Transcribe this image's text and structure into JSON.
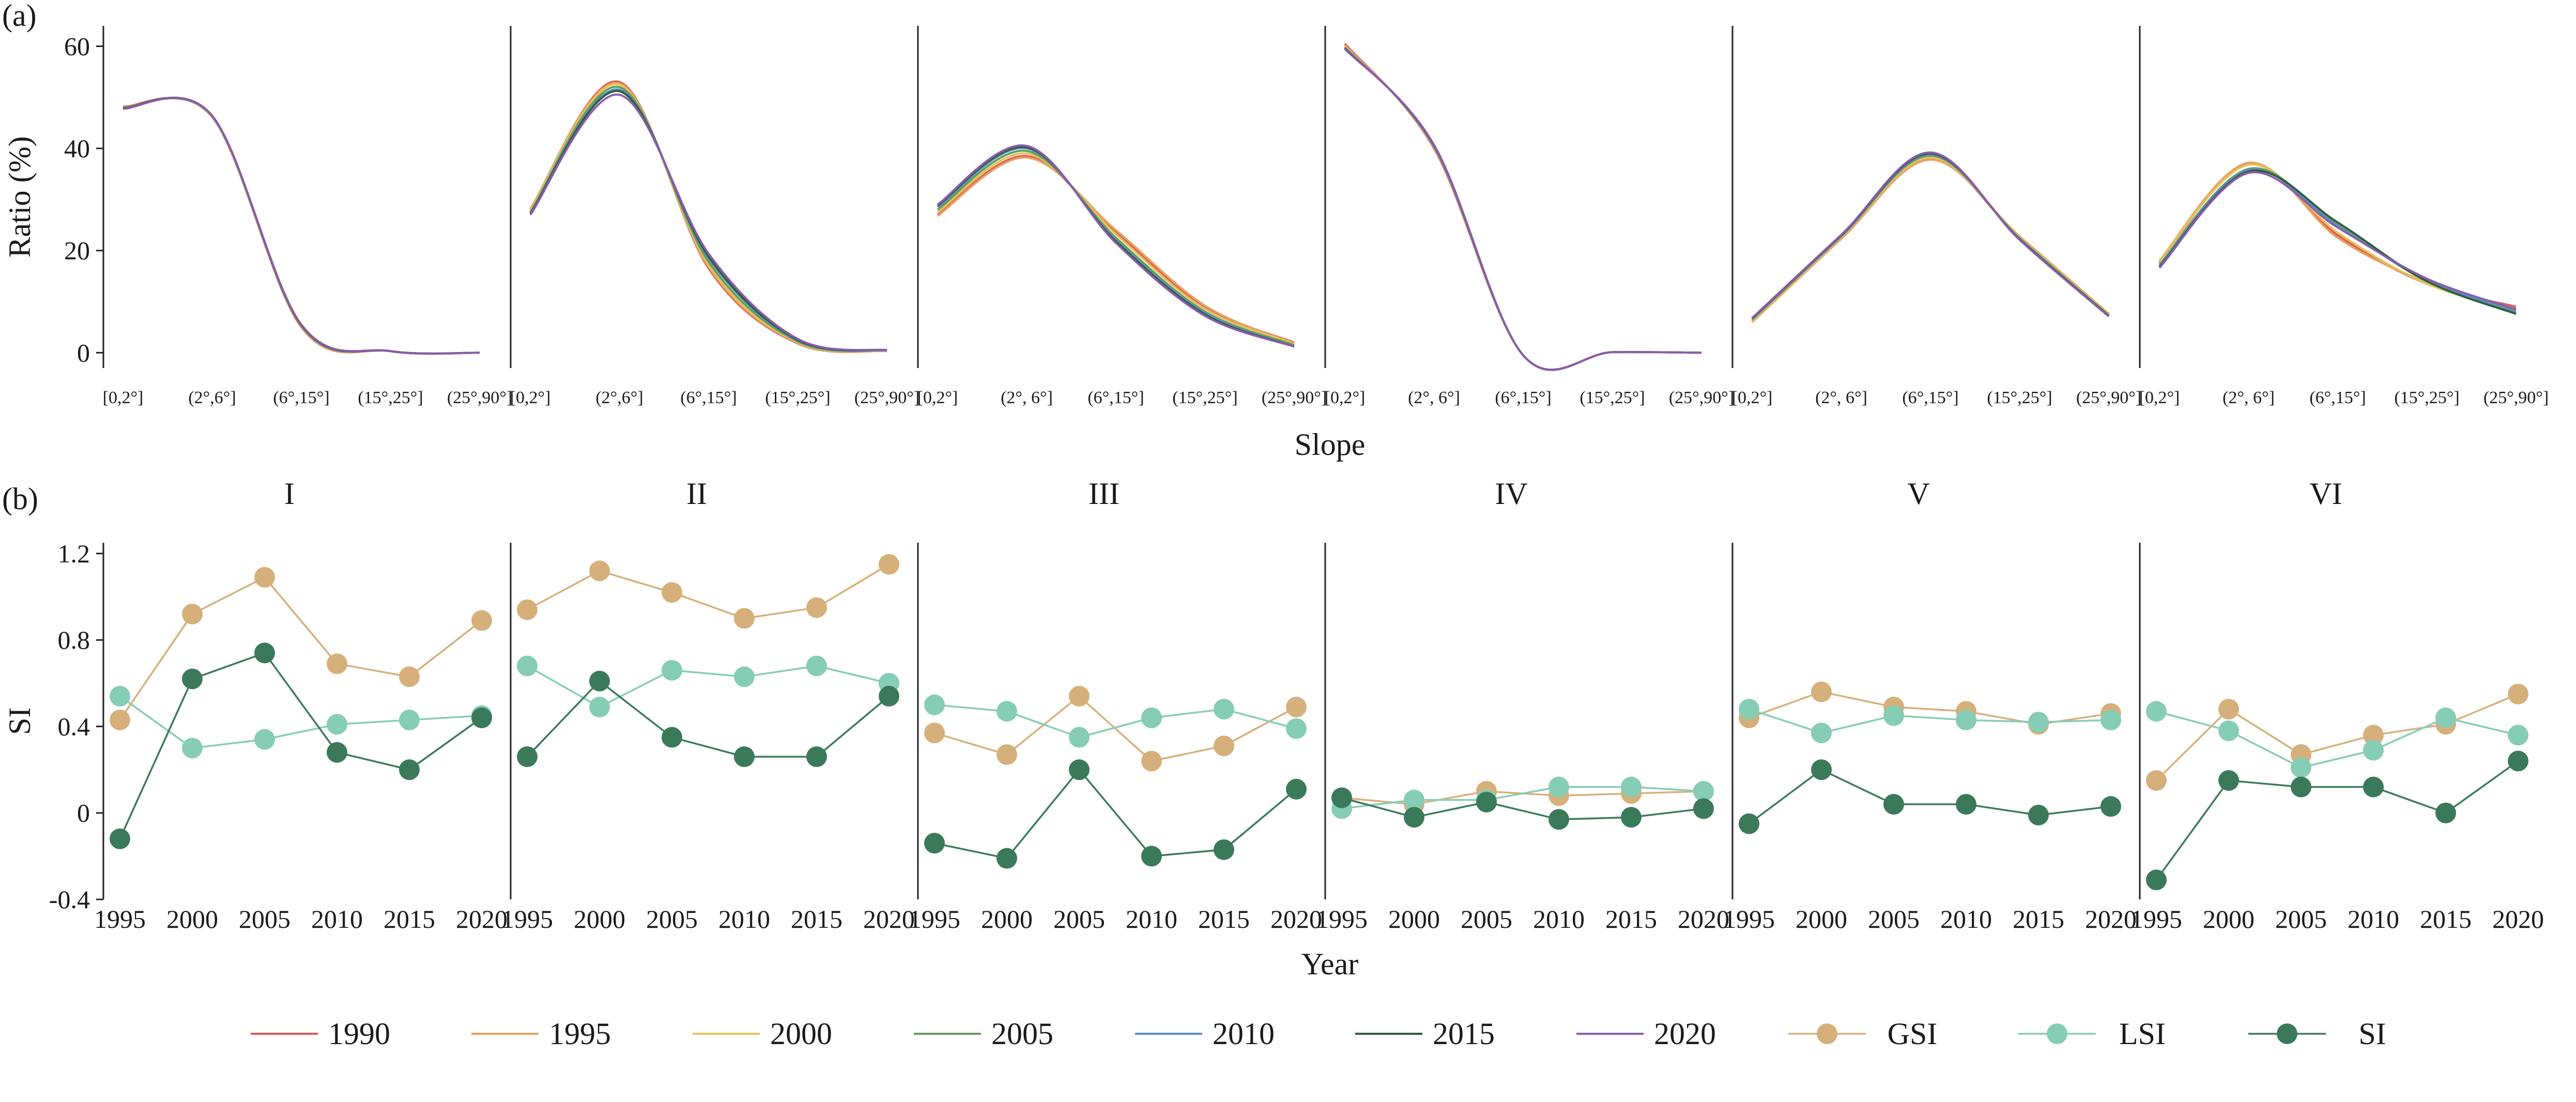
{
  "panel_labels": {
    "a": "(a)",
    "b": "(b)"
  },
  "colors": {
    "1990": "#e05a55",
    "1995": "#e8a060",
    "2000": "#e5c25a",
    "2005": "#5f9e5c",
    "2010": "#5b8fc8",
    "2015": "#2e5e3e",
    "2020": "#8a5cab",
    "GSI": "#d6b07a",
    "LSI": "#86cdb5",
    "SI": "#3a7a5a"
  },
  "chart_data": [
    {
      "type": "line",
      "panel": "a",
      "ylabel": "Ratio (%)",
      "xlabel": "Slope",
      "ylim": [
        -3,
        64
      ],
      "yticks": [
        0,
        20,
        40,
        60
      ],
      "series_names": [
        "1990",
        "1995",
        "2000",
        "2005",
        "2010",
        "2015",
        "2020"
      ],
      "subplots": [
        {
          "categories": [
            "[0,2°]",
            "(2°,6°]",
            "(6°,15°]",
            "(15°,25°]",
            "(25°,90°]"
          ],
          "series": [
            {
              "name": "1990",
              "values": [
                48.2,
                46.2,
                5.0,
                0.3,
                0.0
              ]
            },
            {
              "name": "1995",
              "values": [
                48.1,
                46.1,
                5.1,
                0.3,
                0.0
              ]
            },
            {
              "name": "2000",
              "values": [
                48.0,
                46.2,
                5.2,
                0.3,
                0.0
              ]
            },
            {
              "name": "2005",
              "values": [
                48.0,
                46.3,
                5.3,
                0.3,
                0.0
              ]
            },
            {
              "name": "2010",
              "values": [
                47.9,
                46.3,
                5.4,
                0.3,
                0.0
              ]
            },
            {
              "name": "2015",
              "values": [
                47.9,
                46.4,
                5.4,
                0.3,
                0.0
              ]
            },
            {
              "name": "2020",
              "values": [
                47.8,
                46.4,
                5.5,
                0.3,
                0.0
              ]
            }
          ]
        },
        {
          "categories": [
            "[0,2°]",
            "(2°,6°]",
            "(6°,15°]",
            "(15°,25°]",
            "(25°,90°]"
          ],
          "series": [
            {
              "name": "1990",
              "values": [
                28.0,
                53.0,
                16.5,
                1.8,
                0.3
              ]
            },
            {
              "name": "1995",
              "values": [
                28.2,
                52.7,
                16.8,
                1.9,
                0.3
              ]
            },
            {
              "name": "2000",
              "values": [
                27.8,
                52.5,
                17.2,
                2.0,
                0.3
              ]
            },
            {
              "name": "2005",
              "values": [
                27.5,
                52.0,
                17.8,
                2.2,
                0.4
              ]
            },
            {
              "name": "2010",
              "values": [
                27.3,
                51.5,
                18.5,
                2.4,
                0.4
              ]
            },
            {
              "name": "2015",
              "values": [
                27.2,
                51.2,
                18.8,
                2.5,
                0.5
              ]
            },
            {
              "name": "2020",
              "values": [
                27.0,
                50.5,
                19.4,
                2.7,
                0.5
              ]
            }
          ]
        },
        {
          "categories": [
            "[0,2°]",
            "(2°, 6°]",
            "(6°,15°]",
            "(15°,25°]",
            "(25°,90°]"
          ],
          "series": [
            {
              "name": "1990",
              "values": [
                27.0,
                38.5,
                23.5,
                9.0,
                2.0
              ]
            },
            {
              "name": "1995",
              "values": [
                26.8,
                38.2,
                24.0,
                9.2,
                1.8
              ]
            },
            {
              "name": "2000",
              "values": [
                27.5,
                39.0,
                23.2,
                8.5,
                1.8
              ]
            },
            {
              "name": "2005",
              "values": [
                28.0,
                39.5,
                22.5,
                8.0,
                1.5
              ]
            },
            {
              "name": "2010",
              "values": [
                28.5,
                40.0,
                22.0,
                7.8,
                1.2
              ]
            },
            {
              "name": "2015",
              "values": [
                28.8,
                40.2,
                21.8,
                7.5,
                1.2
              ]
            },
            {
              "name": "2020",
              "values": [
                29.0,
                40.5,
                21.5,
                7.2,
                1.2
              ]
            }
          ]
        },
        {
          "categories": [
            "[0,2°]",
            "(2°, 6°]",
            "(6°,15°]",
            "(15°,25°]",
            "(25°,90°]"
          ],
          "series": [
            {
              "name": "1990",
              "values": [
                60.5,
                40.0,
                -0.5,
                0.1,
                0.0
              ]
            },
            {
              "name": "1995",
              "values": [
                60.2,
                40.2,
                -0.5,
                0.1,
                0.0
              ]
            },
            {
              "name": "2000",
              "values": [
                60.0,
                40.3,
                -0.5,
                0.1,
                0.0
              ]
            },
            {
              "name": "2005",
              "values": [
                59.8,
                40.4,
                -0.5,
                0.1,
                0.0
              ]
            },
            {
              "name": "2010",
              "values": [
                59.7,
                40.5,
                -0.5,
                0.1,
                0.0
              ]
            },
            {
              "name": "2015",
              "values": [
                59.6,
                40.6,
                -0.5,
                0.1,
                0.0
              ]
            },
            {
              "name": "2020",
              "values": [
                59.5,
                40.7,
                -0.5,
                0.1,
                0.0
              ]
            }
          ]
        },
        {
          "categories": [
            "[0,2°]",
            "(2°, 6°]",
            "(6°,15°]",
            "(15°,25°]",
            "(25°,90°]"
          ],
          "series": [
            {
              "name": "1990",
              "values": [
                6.2,
                22.5,
                38.0,
                22.5,
                7.5
              ]
            },
            {
              "name": "1995",
              "values": [
                6.0,
                22.3,
                37.8,
                22.8,
                7.6
              ]
            },
            {
              "name": "2000",
              "values": [
                6.3,
                22.6,
                38.2,
                22.6,
                7.4
              ]
            },
            {
              "name": "2005",
              "values": [
                6.5,
                22.8,
                38.6,
                22.4,
                7.3
              ]
            },
            {
              "name": "2010",
              "values": [
                6.6,
                22.9,
                38.8,
                22.3,
                7.2
              ]
            },
            {
              "name": "2015",
              "values": [
                6.7,
                23.0,
                39.0,
                22.2,
                7.2
              ]
            },
            {
              "name": "2020",
              "values": [
                6.8,
                23.1,
                39.2,
                22.1,
                7.1
              ]
            }
          ]
        },
        {
          "categories": [
            "[0,2°]",
            "(2°, 6°]",
            "(6°,15°]",
            "(15°,25°]",
            "(25°,90°]"
          ],
          "series": [
            {
              "name": "1990",
              "values": [
                17.5,
                37.0,
                23.0,
                13.5,
                9.0
              ]
            },
            {
              "name": "1995",
              "values": [
                18.0,
                37.2,
                22.5,
                13.8,
                8.6
              ]
            },
            {
              "name": "2000",
              "values": [
                17.8,
                36.8,
                23.5,
                13.5,
                8.4
              ]
            },
            {
              "name": "2005",
              "values": [
                17.2,
                36.0,
                25.0,
                14.0,
                7.8
              ]
            },
            {
              "name": "2010",
              "values": [
                17.0,
                35.8,
                24.8,
                14.2,
                8.2
              ]
            },
            {
              "name": "2015",
              "values": [
                16.8,
                35.5,
                25.5,
                14.0,
                7.6
              ]
            },
            {
              "name": "2020",
              "values": [
                16.6,
                35.2,
                24.5,
                14.5,
                8.5
              ]
            }
          ]
        }
      ]
    },
    {
      "type": "line",
      "panel": "b",
      "ylabel": "SI",
      "xlabel": "Year",
      "ylim": [
        -0.4,
        1.25
      ],
      "yticks": [
        -0.4,
        0,
        0.4,
        0.8,
        1.2
      ],
      "ytick_labels": [
        "-0.4",
        "0",
        "0.4",
        "0.8",
        "1.2"
      ],
      "x": [
        "1995",
        "2000",
        "2005",
        "2010",
        "2015",
        "2020"
      ],
      "series_names": [
        "GSI",
        "LSI",
        "SI"
      ],
      "subplots": [
        {
          "title": "I",
          "series": [
            {
              "name": "GSI",
              "values": [
                0.43,
                0.92,
                1.09,
                0.69,
                0.63,
                0.89
              ]
            },
            {
              "name": "LSI",
              "values": [
                0.54,
                0.3,
                0.34,
                0.41,
                0.43,
                0.45
              ]
            },
            {
              "name": "SI",
              "values": [
                -0.12,
                0.62,
                0.74,
                0.28,
                0.2,
                0.44
              ]
            }
          ]
        },
        {
          "title": "II",
          "series": [
            {
              "name": "GSI",
              "values": [
                0.94,
                1.12,
                1.02,
                0.9,
                0.95,
                1.15
              ]
            },
            {
              "name": "LSI",
              "values": [
                0.68,
                0.49,
                0.66,
                0.63,
                0.68,
                0.6
              ]
            },
            {
              "name": "SI",
              "values": [
                0.26,
                0.61,
                0.35,
                0.26,
                0.26,
                0.54
              ]
            }
          ]
        },
        {
          "title": "III",
          "series": [
            {
              "name": "GSI",
              "values": [
                0.37,
                0.27,
                0.54,
                0.24,
                0.31,
                0.49
              ]
            },
            {
              "name": "LSI",
              "values": [
                0.5,
                0.47,
                0.35,
                0.44,
                0.48,
                0.39
              ]
            },
            {
              "name": "SI",
              "values": [
                -0.14,
                -0.21,
                0.2,
                -0.2,
                -0.17,
                0.11
              ]
            }
          ]
        },
        {
          "title": "IV",
          "series": [
            {
              "name": "GSI",
              "values": [
                0.07,
                0.04,
                0.1,
                0.08,
                0.09,
                0.1
              ]
            },
            {
              "name": "LSI",
              "values": [
                0.02,
                0.06,
                0.06,
                0.12,
                0.12,
                0.1
              ]
            },
            {
              "name": "SI",
              "values": [
                0.07,
                -0.02,
                0.05,
                -0.03,
                -0.02,
                0.02
              ]
            }
          ]
        },
        {
          "title": "V",
          "series": [
            {
              "name": "GSI",
              "values": [
                0.44,
                0.56,
                0.49,
                0.47,
                0.41,
                0.46
              ]
            },
            {
              "name": "LSI",
              "values": [
                0.48,
                0.37,
                0.45,
                0.43,
                0.42,
                0.43
              ]
            },
            {
              "name": "SI",
              "values": [
                -0.05,
                0.2,
                0.04,
                0.04,
                -0.01,
                0.03
              ]
            }
          ]
        },
        {
          "title": "VI",
          "series": [
            {
              "name": "GSI",
              "values": [
                0.15,
                0.48,
                0.27,
                0.36,
                0.41,
                0.55
              ]
            },
            {
              "name": "LSI",
              "values": [
                0.47,
                0.38,
                0.21,
                0.29,
                0.44,
                0.36
              ]
            },
            {
              "name": "SI",
              "values": [
                -0.31,
                0.15,
                0.12,
                0.12,
                0.0,
                0.24
              ]
            }
          ]
        }
      ]
    }
  ]
}
